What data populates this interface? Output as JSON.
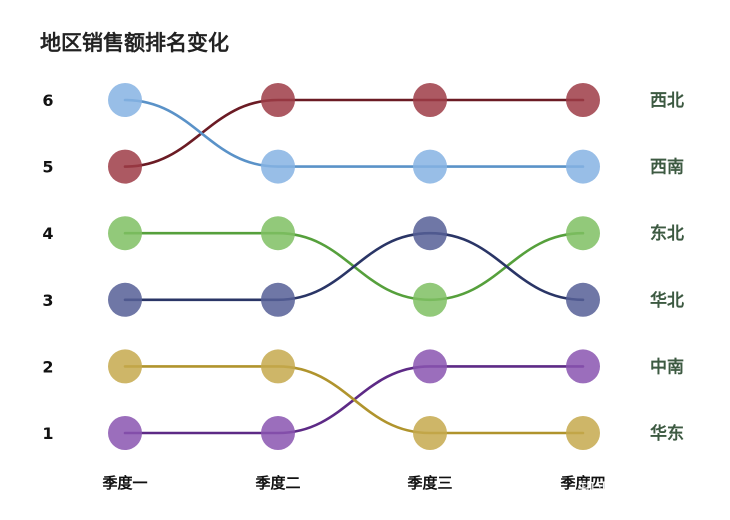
{
  "chart_data": {
    "type": "line",
    "title": "地区销售额排名变化",
    "categories": [
      "季度一",
      "季度二",
      "季度三",
      "季度四"
    ],
    "y_ticks": [
      1,
      2,
      3,
      4,
      5,
      6
    ],
    "ylim": [
      1,
      6
    ],
    "grid": false,
    "legend": "right",
    "series": [
      {
        "name": "西北",
        "values": [
          5,
          6,
          6,
          6
        ],
        "line_color": "#6b1b24",
        "dot_color": "#9e3c46"
      },
      {
        "name": "西南",
        "values": [
          6,
          5,
          5,
          5
        ],
        "line_color": "#5a92c8",
        "dot_color": "#86b3e3"
      },
      {
        "name": "东北",
        "values": [
          4,
          4,
          3,
          4
        ],
        "line_color": "#56a03c",
        "dot_color": "#7fbf63"
      },
      {
        "name": "华北",
        "values": [
          3,
          3,
          4,
          3
        ],
        "line_color": "#2a3566",
        "dot_color": "#565f96"
      },
      {
        "name": "中南",
        "values": [
          1,
          1,
          2,
          2
        ],
        "line_color": "#5d2a86",
        "dot_color": "#8a55b0"
      },
      {
        "name": "华东",
        "values": [
          2,
          2,
          1,
          1
        ],
        "line_color": "#b0942d",
        "dot_color": "#c6a94e"
      }
    ]
  },
  "watermark": "知乎 @BI佐罗"
}
